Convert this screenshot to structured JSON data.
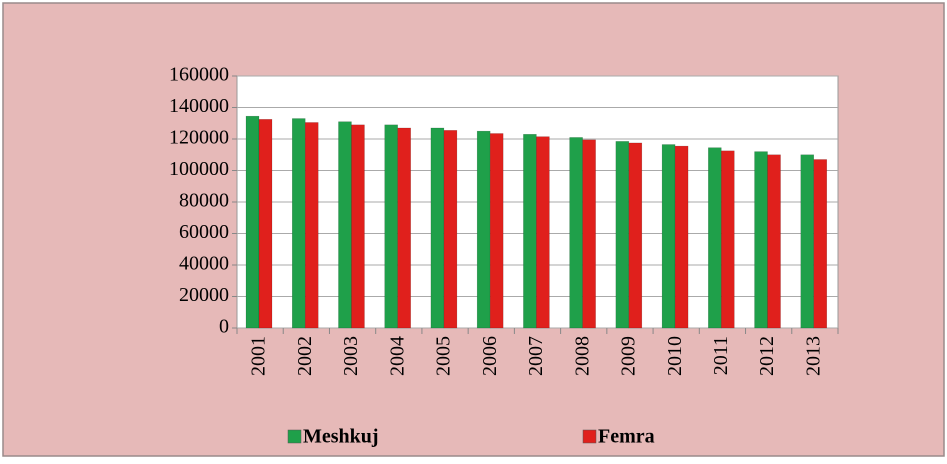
{
  "chart_data": {
    "type": "bar",
    "categories": [
      "2001",
      "2002",
      "2003",
      "2004",
      "2005",
      "2006",
      "2007",
      "2008",
      "2009",
      "2010",
      "2011",
      "2012",
      "2013"
    ],
    "series": [
      {
        "name": "Meshkuj",
        "color": "#1fa04a",
        "values": [
          134500,
          133000,
          131000,
          129000,
          127000,
          125000,
          123000,
          121000,
          118500,
          116500,
          114500,
          112000,
          110000
        ]
      },
      {
        "name": "Femra",
        "color": "#e0201c",
        "values": [
          132500,
          130500,
          129000,
          127000,
          125500,
          123500,
          121500,
          119500,
          117500,
          115500,
          112500,
          110000,
          107000
        ]
      }
    ],
    "ylim": [
      0,
      160000
    ],
    "yticks": [
      0,
      20000,
      40000,
      60000,
      80000,
      100000,
      120000,
      140000,
      160000
    ],
    "grid": true,
    "legend": "bottom"
  }
}
